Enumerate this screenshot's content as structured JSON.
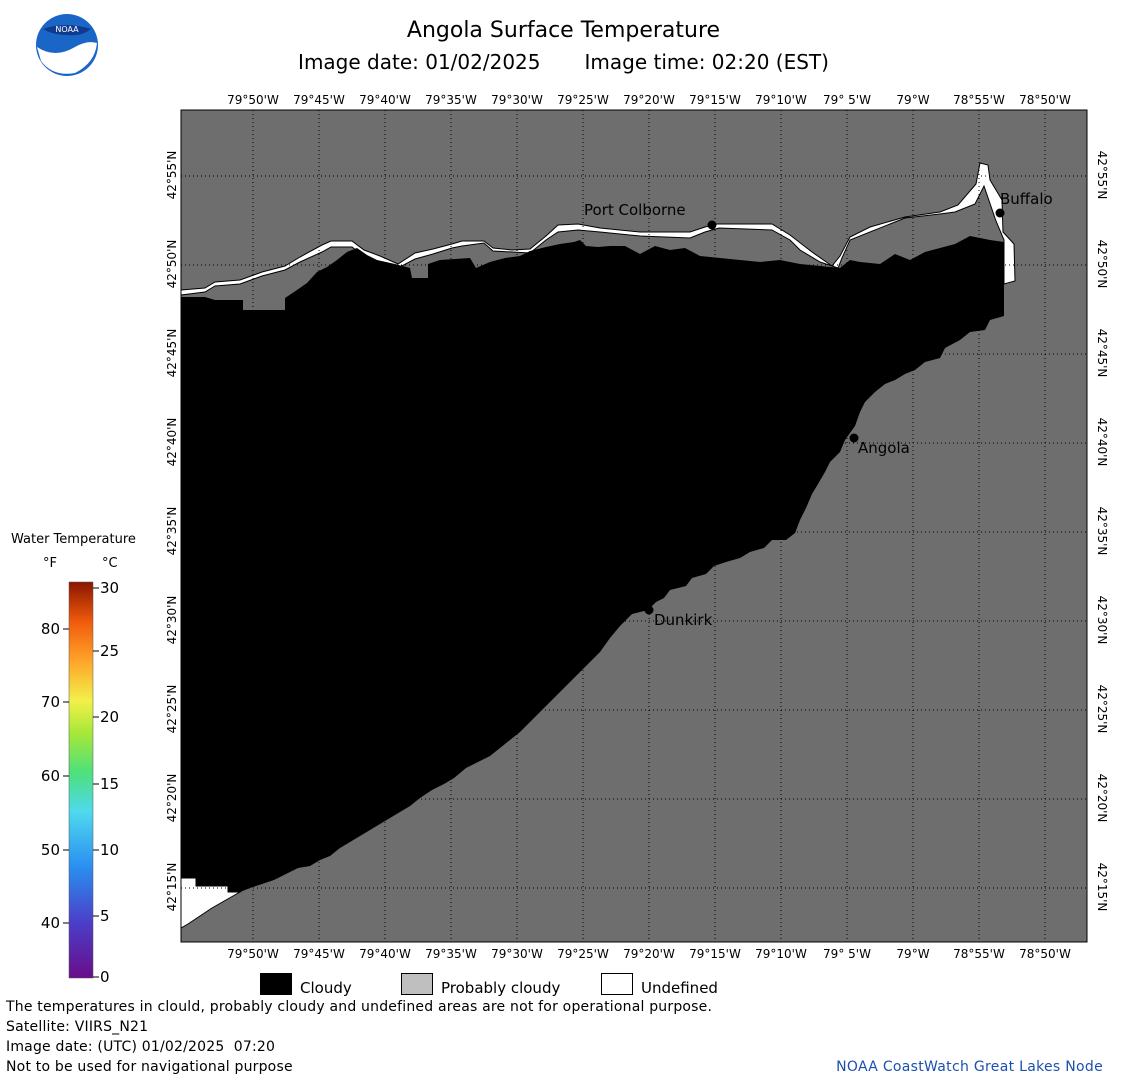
{
  "header": {
    "title": "Angola Surface Temperature",
    "image_date": "Image date: 01/02/2025",
    "image_time": "Image time: 02:20 (EST)"
  },
  "logo": {
    "text": "NOAA",
    "icon": "noaa-logo-icon"
  },
  "map": {
    "longitude_labels": [
      "79°50'W",
      "79°45'W",
      "79°40'W",
      "79°35'W",
      "79°30'W",
      "79°25'W",
      "79°20'W",
      "79°15'W",
      "79°10'W",
      "79° 5'W",
      "79°W",
      "78°55'W",
      "78°50'W"
    ],
    "latitude_labels": [
      "42°55'N",
      "42°50'N",
      "42°45'N",
      "42°40'N",
      "42°35'N",
      "42°30'N",
      "42°25'N",
      "42°20'N",
      "42°15'N"
    ],
    "cities": [
      {
        "name": "Port Colborne"
      },
      {
        "name": "Buffalo"
      },
      {
        "name": "Angola"
      },
      {
        "name": "Dunkirk"
      }
    ],
    "colors": {
      "land": "#6e6e6e",
      "cloudy": "#000000",
      "undefined": "#ffffff"
    }
  },
  "legend": {
    "title": "Water Temperature",
    "unit_f": "°F",
    "unit_c": "°C",
    "f_ticks": [
      "80",
      "70",
      "60",
      "50",
      "40"
    ],
    "c_ticks": [
      "30",
      "25",
      "20",
      "15",
      "10",
      "5",
      "0"
    ]
  },
  "key": {
    "cloudy": "Cloudy",
    "probably_cloudy": "Probably cloudy",
    "undefined": "Undefined"
  },
  "footer": {
    "disclaimer": "The temperatures in clould, probably cloudy and undefined areas are not for operational purpose.",
    "satellite": "Satellite: VIIRS_N21",
    "utc_date": "Image date: (UTC) 01/02/2025  07:20",
    "nav_warning": "Not to be used for navigational purpose",
    "credit": "NOAA CoastWatch Great Lakes Node"
  }
}
